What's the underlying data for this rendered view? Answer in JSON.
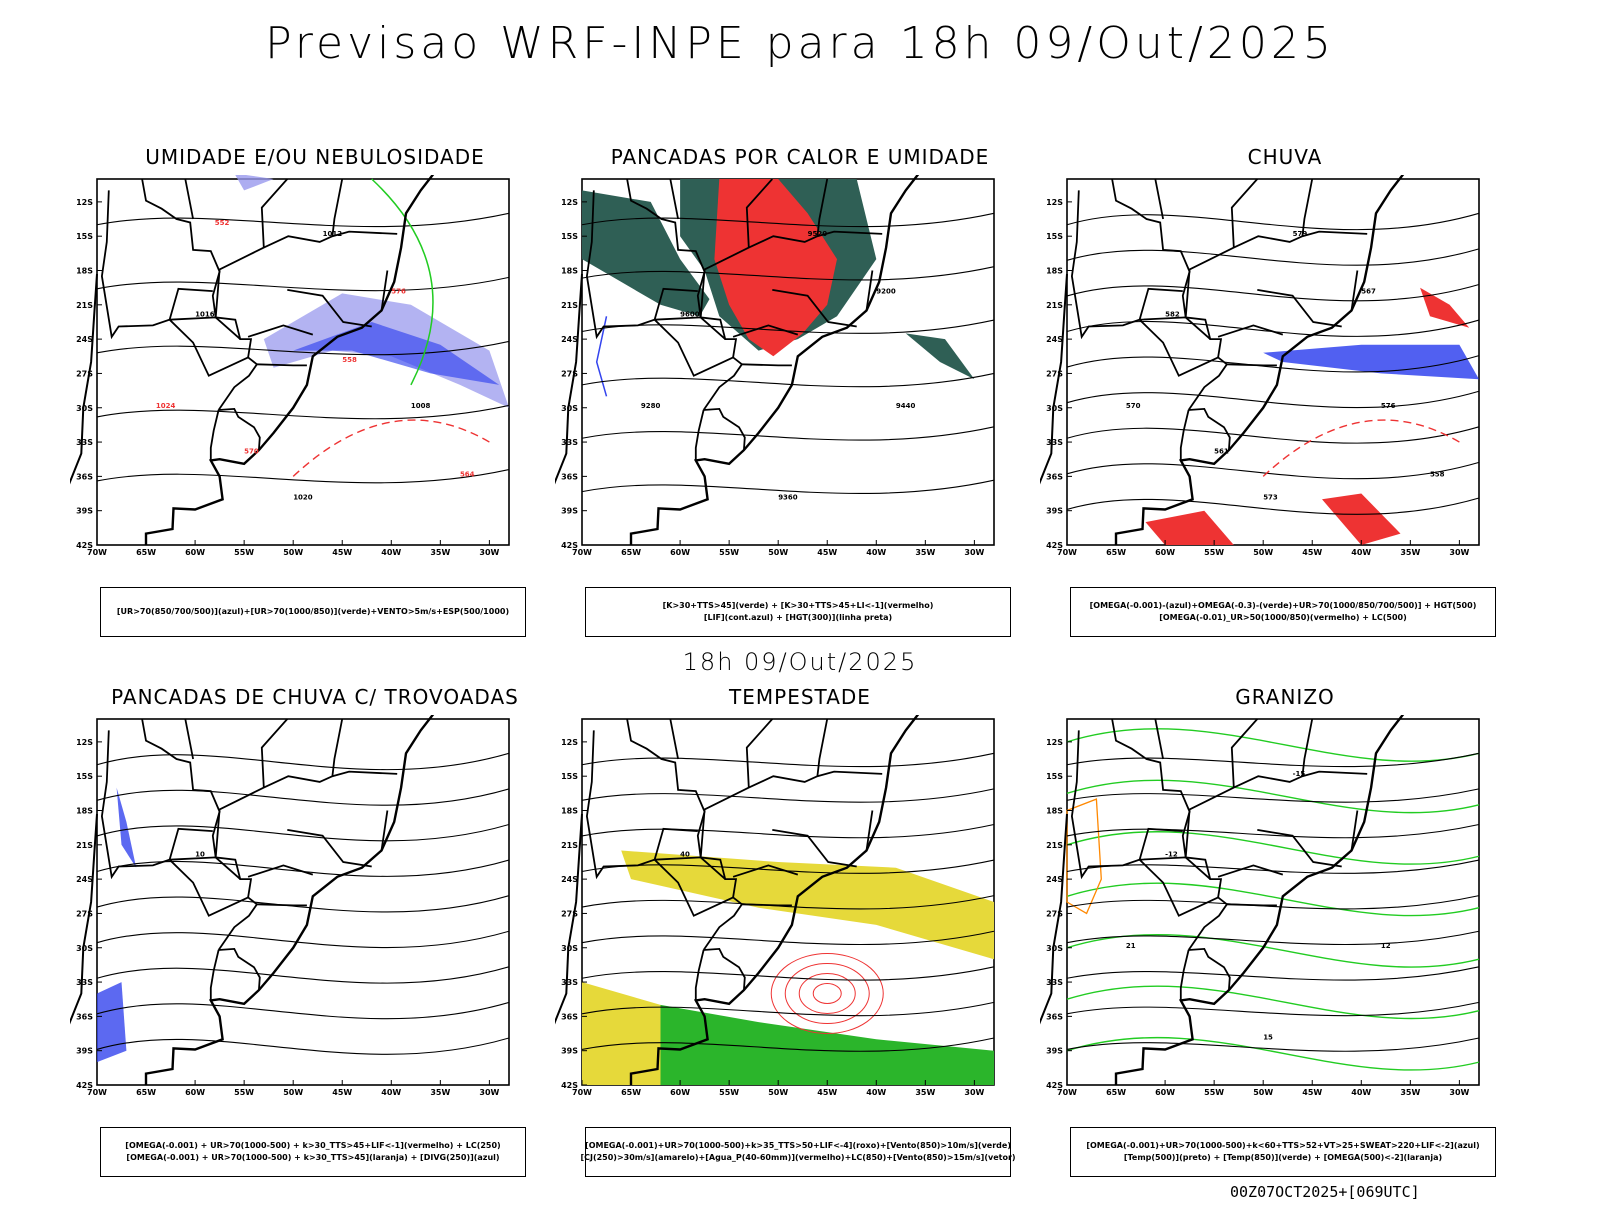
{
  "main_title": "Previsao WRF-INPE  para 18h 09/Out/2025",
  "mid_title": "18h 09/Out/2025",
  "run_label": "00Z07OCT2025+[069UTC]",
  "axes": {
    "lat_ticks": [
      "12S",
      "15S",
      "18S",
      "21S",
      "24S",
      "27S",
      "30S",
      "33S",
      "36S",
      "39S",
      "42S"
    ],
    "lon_ticks": [
      "70W",
      "65W",
      "60W",
      "55W",
      "50W",
      "45W",
      "40W",
      "35W",
      "30W"
    ]
  },
  "colors": {
    "green": "#22cc22",
    "red": "#ee3333",
    "blue": "#3344ee",
    "darkteal": "#2f5f55",
    "yellow": "#e6d93a",
    "orange": "#ff8800",
    "lavender": "#9999ee"
  },
  "chart_data": [
    {
      "type": "map",
      "title": "UMIDADE E/OU NEBULOSIDADE",
      "legend": [
        "[UR>70(850/700/500)](azul)+[UR>70(1000/850)](verde)+VENTO>5m/s+ESP(500/1000)"
      ],
      "contour_labels": [
        "1016",
        "1012",
        "1008",
        "1020",
        "1024",
        "576",
        "570",
        "564",
        "558",
        "552"
      ]
    },
    {
      "type": "map",
      "title": "PANCADAS POR CALOR E UMIDADE",
      "legend": [
        "[K>30+TTS>45](verde) + [K>30+TTS>45+LI<-1](vermelho)",
        "[LIF](cont.azul) + [HGT(300)](linha preta)"
      ],
      "contour_labels": [
        "9600",
        "9520",
        "9440",
        "9360",
        "9280",
        "9200"
      ]
    },
    {
      "type": "map",
      "title": "CHUVA",
      "legend": [
        "[OMEGA(-0.001)-(azul)+OMEGA(-0.3)-(verde)+UR>70(1000/850/700/500)] + HGT(500)",
        "[OMEGA(-0.01)_UR>50(1000/850)(vermelho) + LC(500)"
      ],
      "contour_labels": [
        "582",
        "579",
        "576",
        "573",
        "570",
        "567",
        "561",
        "558"
      ]
    },
    {
      "type": "map",
      "title": "PANCADAS DE CHUVA C/ TROVOADAS",
      "legend": [
        "[OMEGA(-0.001) + UR>70(1000-500) + k>30_TTS>45+LIF<-1](vermelho) + LC(250)",
        "[OMEGA(-0.001) + UR>70(1000-500) + k>30_TTS>45](laranja) + [DIVG(250)](azul)"
      ],
      "contour_labels": [
        "10"
      ]
    },
    {
      "type": "map",
      "title": "TEMPESTADE",
      "legend": [
        "[OMEGA(-0.001)+UR>70(1000-500)+k>35_TTS>50+LIF<-4](roxo)+[Vento(850)>10m/s](verde)",
        "[CJ(250)>30m/s](amarelo)+[Agua_P(40-60mm)](vermelho)+LC(850)+[Vento(850)>15m/s](vetor)"
      ],
      "contour_labels": [
        "40"
      ]
    },
    {
      "type": "map",
      "title": "GRANIZO",
      "legend": [
        "[OMEGA(-0.001)+UR>70(1000-500)+k<60+TTS>52+VT>25+SWEAT>220+LIF<-2](azul)",
        "[Temp(500)](preto) + [Temp(850)](verde) + [OMEGA(500)<-2](laranja)"
      ],
      "contour_labels": [
        "-12",
        "-15",
        "12",
        "15",
        "21"
      ]
    }
  ]
}
